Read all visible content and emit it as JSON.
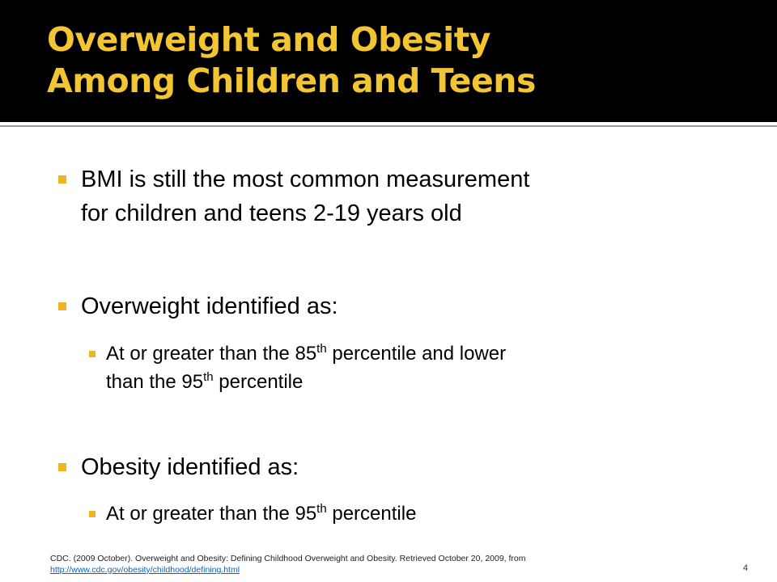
{
  "title": {
    "line1": "Overweight and Obesity",
    "line2": "Among Children and Teens"
  },
  "bullets": {
    "b1_line1": "BMI is still the most common measurement",
    "b1_line2": "for children and teens 2-19 years old",
    "b2": "Overweight identified as:",
    "b2_sub_part1": "At or greater than the 85",
    "b2_sub_sup1": "th",
    "b2_sub_part2": " percentile and lower",
    "b2_sub_part3": "than the 95",
    "b2_sub_sup2": "th",
    "b2_sub_part4": " percentile",
    "b3": "Obesity identified as:",
    "b3_sub_part1": "At or greater than the 95",
    "b3_sub_sup": "th",
    "b3_sub_part2": " percentile"
  },
  "footer": {
    "citation": "CDC. (2009 October). Overweight and Obesity: Defining Childhood Overweight and Obesity. Retrieved October 20, 2009, from",
    "link": "http://www.cdc.gov/obesity/childhood/defining.html"
  },
  "slide_number": "4",
  "colors": {
    "title_text": "#f3c533",
    "title_band": "#000000",
    "bullet_marker": "#f0b323"
  }
}
